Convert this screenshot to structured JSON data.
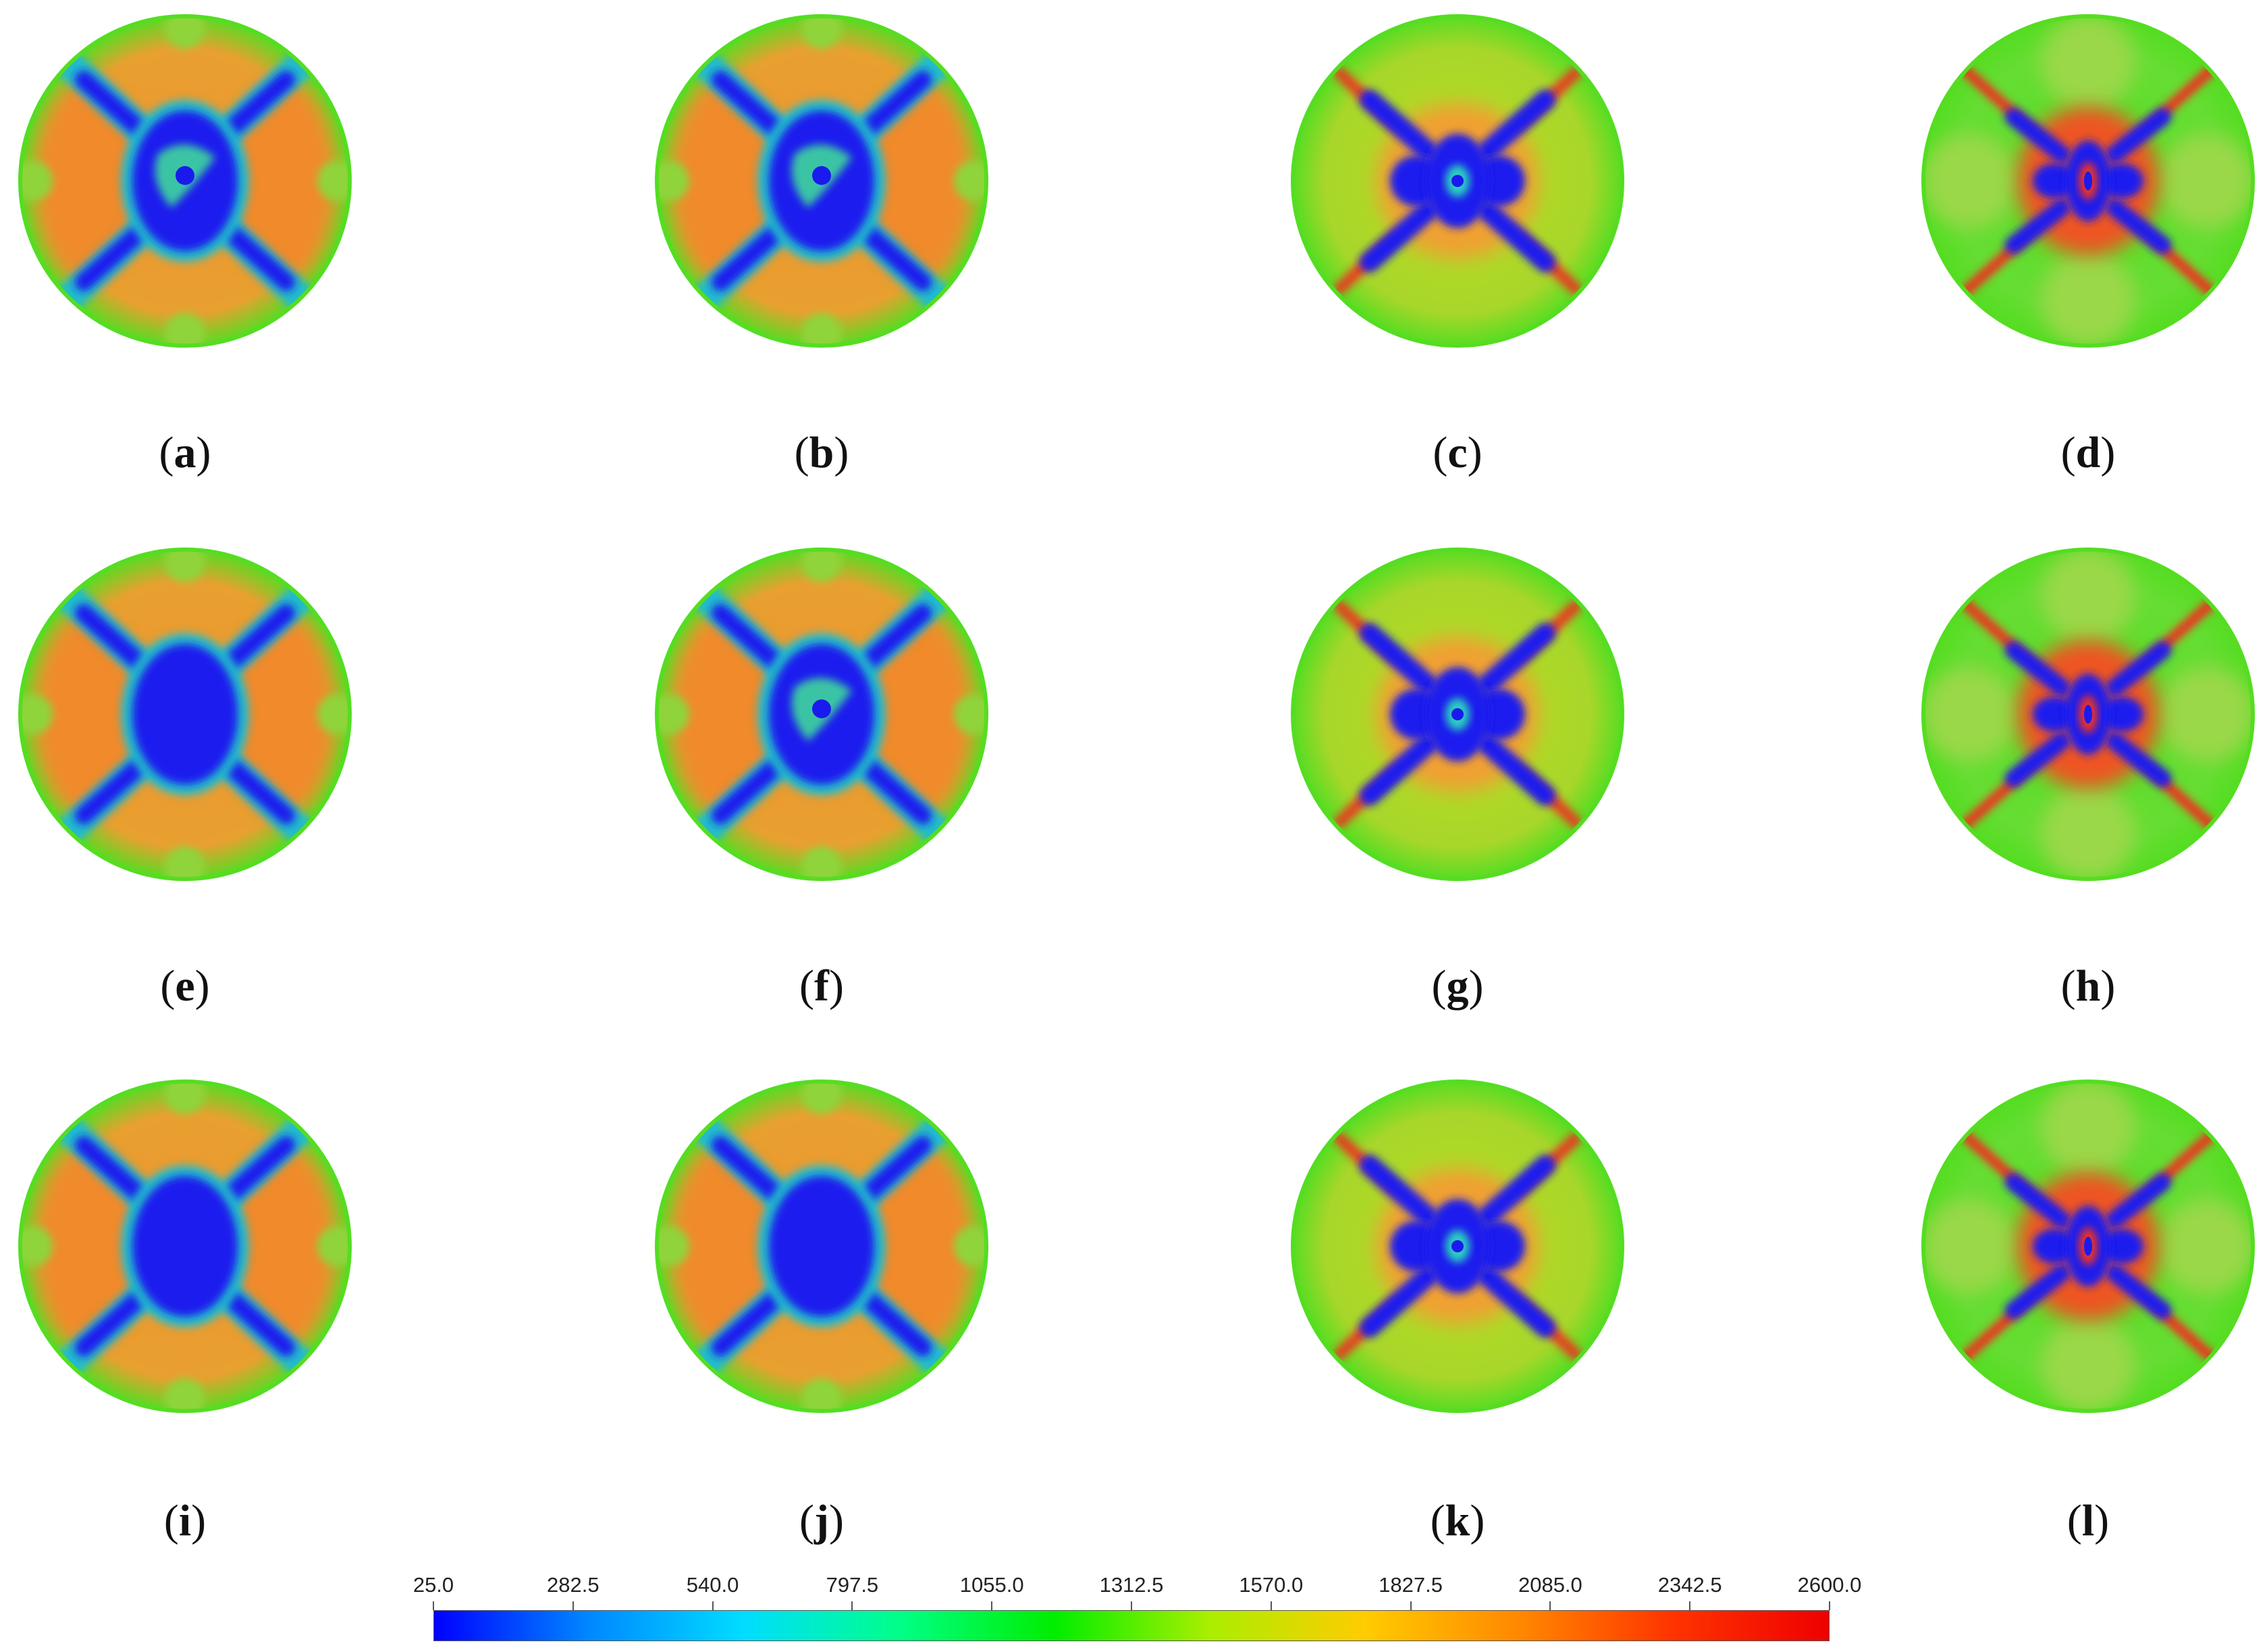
{
  "panels": [
    {
      "label": "a",
      "variant": "A"
    },
    {
      "label": "b",
      "variant": "A"
    },
    {
      "label": "c",
      "variant": "C"
    },
    {
      "label": "d",
      "variant": "D"
    },
    {
      "label": "e",
      "variant": "B"
    },
    {
      "label": "f",
      "variant": "A"
    },
    {
      "label": "g",
      "variant": "C"
    },
    {
      "label": "h",
      "variant": "D"
    },
    {
      "label": "i",
      "variant": "B"
    },
    {
      "label": "j",
      "variant": "B"
    },
    {
      "label": "k",
      "variant": "C"
    },
    {
      "label": "l",
      "variant": "D"
    }
  ],
  "colorbar": {
    "min": 25.0,
    "max": 2600.0,
    "ticks": [
      "25.0",
      "282.5",
      "540.0",
      "797.5",
      "1055.0",
      "1312.5",
      "1570.0",
      "1827.5",
      "2085.0",
      "2342.5",
      "2600.0"
    ],
    "colors": [
      "#0000ff",
      "#0088ff",
      "#00ddff",
      "#00ff88",
      "#00ee00",
      "#aaee00",
      "#ffcc00",
      "#ff8800",
      "#ff3300",
      "#ee0000"
    ]
  },
  "palette": {
    "cold": "#1a1aee",
    "cyan": "#22bbcc",
    "green": "#55dd22",
    "yellowgreen": "#bbdd22",
    "orange": "#f0952e",
    "red": "#ee3322"
  }
}
